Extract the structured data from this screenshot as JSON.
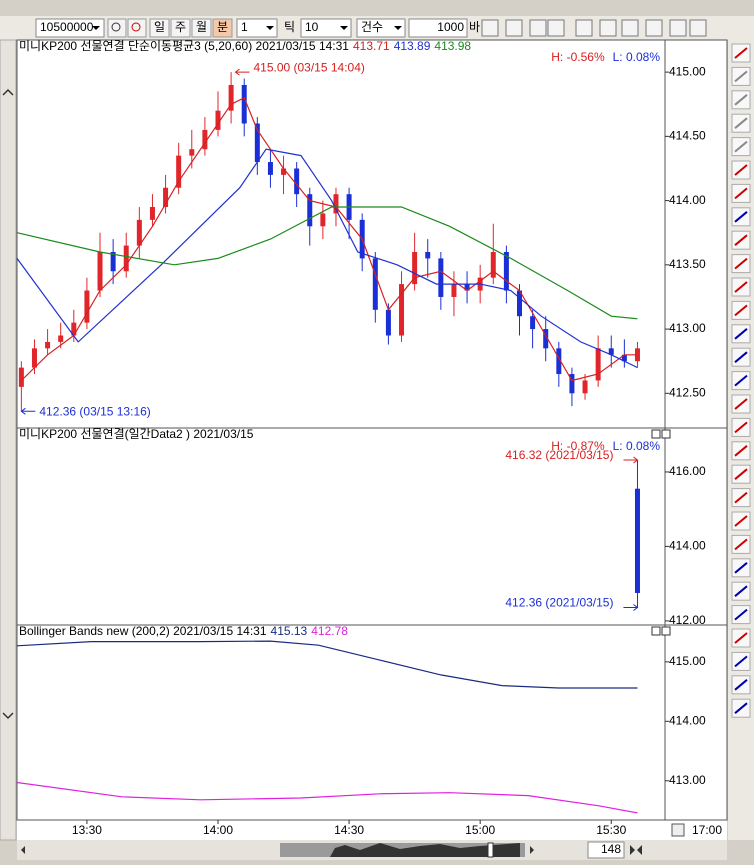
{
  "toolbar": {
    "code": "10500000",
    "periods": [
      "일",
      "주",
      "월",
      "분"
    ],
    "interval": "1",
    "tick": "틱",
    "tick_count": "10",
    "count_mode": "건수",
    "count": "1000",
    "bar": "바"
  },
  "chart_data": [
    {
      "type": "candlestick",
      "title": "미니KP200 선물연결 단순이동평균3 (5,20,60) 2021/03/15 14:31",
      "legend_values": [
        {
          "value": 413.71,
          "label": "413.71",
          "color": "#d62020"
        },
        {
          "value": 413.89,
          "label": "413.89",
          "color": "#2030d0"
        },
        {
          "value": 413.98,
          "label": "413.98",
          "color": "#1a8a1a"
        }
      ],
      "high_change": "H: -0.56%",
      "low_change": "L: 0.08%",
      "xlim": [
        794,
        942.3
      ],
      "ylim": [
        412.23,
        415.25
      ],
      "yticks": [
        {
          "value": 415,
          "label": "415.00"
        },
        {
          "value": 414.5,
          "label": "414.50"
        },
        {
          "value": 414,
          "label": "414.00"
        },
        {
          "value": 413.5,
          "label": "413.50"
        },
        {
          "value": 413,
          "label": "413.00"
        },
        {
          "value": 412.5,
          "label": "412.50"
        }
      ],
      "up_color": "#e0262b",
      "down_color": "#1b2fd6",
      "candles": {
        "x": [
          795,
          798,
          801,
          804,
          807,
          810,
          813,
          816,
          819,
          822,
          825,
          828,
          831,
          834,
          837,
          840,
          843,
          846,
          849,
          852,
          855,
          858,
          861,
          864,
          867,
          870,
          873,
          876,
          879,
          882,
          885,
          888,
          891,
          894,
          897,
          900,
          903,
          906,
          909,
          912,
          915,
          918,
          921,
          924,
          927,
          930,
          933,
          936
        ],
        "open": [
          412.55,
          412.7,
          412.85,
          412.9,
          412.95,
          413.05,
          413.3,
          413.6,
          413.45,
          413.65,
          413.85,
          413.95,
          414.1,
          414.35,
          414.4,
          414.55,
          414.7,
          414.9,
          414.6,
          414.3,
          414.2,
          414.25,
          414.05,
          413.8,
          413.9,
          414.05,
          413.85,
          413.55,
          413.15,
          412.95,
          413.35,
          413.6,
          413.55,
          413.25,
          413.35,
          413.3,
          413.4,
          413.6,
          413.3,
          413.1,
          413.0,
          412.85,
          412.65,
          412.5,
          412.6,
          412.85,
          412.8,
          412.75
        ],
        "high": [
          412.75,
          412.92,
          413.0,
          413.05,
          413.15,
          413.4,
          413.75,
          413.7,
          413.75,
          413.95,
          414.05,
          414.2,
          414.45,
          414.55,
          414.65,
          414.85,
          415.0,
          414.95,
          414.65,
          414.4,
          414.35,
          414.3,
          414.1,
          414.0,
          414.1,
          414.1,
          413.9,
          413.6,
          413.2,
          413.45,
          413.75,
          413.7,
          413.6,
          413.45,
          413.45,
          413.5,
          413.82,
          413.65,
          413.35,
          413.15,
          413.1,
          412.9,
          412.7,
          412.65,
          412.95,
          412.95,
          412.92,
          412.9
        ],
        "low": [
          412.36,
          412.65,
          412.8,
          412.85,
          412.9,
          413.0,
          413.25,
          413.35,
          413.4,
          413.55,
          413.8,
          413.9,
          414.05,
          414.25,
          414.35,
          414.5,
          414.6,
          414.5,
          414.2,
          414.1,
          414.05,
          413.95,
          413.65,
          413.7,
          413.8,
          413.7,
          413.45,
          413.05,
          412.88,
          412.9,
          413.3,
          413.4,
          413.15,
          413.1,
          413.2,
          413.2,
          413.35,
          413.2,
          412.95,
          412.85,
          412.75,
          412.55,
          412.4,
          412.45,
          412.55,
          412.7,
          412.7,
          412.7
        ],
        "close": [
          412.7,
          412.85,
          412.9,
          412.95,
          413.05,
          413.3,
          413.6,
          413.45,
          413.65,
          413.85,
          413.95,
          414.1,
          414.35,
          414.4,
          414.55,
          414.7,
          414.9,
          414.6,
          414.3,
          414.2,
          414.25,
          414.05,
          413.8,
          413.9,
          414.05,
          413.85,
          413.55,
          413.15,
          412.95,
          413.35,
          413.6,
          413.55,
          413.25,
          413.35,
          413.3,
          413.4,
          413.6,
          413.3,
          413.1,
          413.0,
          412.85,
          412.65,
          412.5,
          412.6,
          412.85,
          412.8,
          412.75,
          412.85
        ]
      },
      "series": [
        {
          "color": "#d62020",
          "x": [
            795,
            801,
            807,
            813,
            819,
            825,
            831,
            837,
            843,
            846,
            849,
            855,
            861,
            867,
            873,
            879,
            885,
            891,
            897,
            903,
            909,
            915,
            921,
            927,
            933,
            936
          ],
          "values": [
            412.6,
            412.8,
            412.95,
            413.3,
            413.5,
            413.8,
            414.15,
            414.45,
            414.75,
            414.8,
            414.55,
            414.25,
            414.0,
            413.95,
            413.7,
            413.15,
            413.4,
            413.45,
            413.3,
            413.45,
            413.3,
            412.95,
            412.6,
            412.65,
            412.8,
            412.8
          ]
        },
        {
          "color": "#2030d0",
          "x": [
            794,
            808,
            827,
            845,
            851,
            859,
            866,
            872,
            881,
            890,
            900,
            907,
            914,
            923,
            930,
            936
          ],
          "values": [
            413.55,
            412.9,
            413.5,
            414.1,
            414.4,
            414.35,
            414.0,
            413.6,
            413.5,
            413.35,
            413.35,
            413.3,
            413.1,
            412.9,
            412.8,
            412.7
          ]
        },
        {
          "color": "#1a8a1a",
          "x": [
            794,
            813,
            830,
            840,
            852,
            866,
            882,
            893,
            907,
            920,
            930,
            936
          ],
          "values": [
            413.75,
            413.6,
            413.5,
            413.55,
            413.7,
            413.95,
            413.95,
            413.8,
            413.55,
            413.3,
            413.1,
            413.08
          ]
        }
      ],
      "annotations": [
        {
          "text": "415.00 (03/15 14:04)",
          "x": 844,
          "y": 415.0,
          "color": "#d62020"
        },
        {
          "text": "412.36 (03/15 13:16)",
          "x": 795,
          "y": 412.36,
          "color": "#1b2fd6"
        }
      ]
    },
    {
      "type": "candlestick",
      "title": "미니KP200 선물연결(일간Data2 ) 2021/03/15",
      "high_change": "H: -0.87%",
      "low_change": "L: 0.08%",
      "xlim": [
        794,
        942.3
      ],
      "ylim": [
        411.89,
        417.18
      ],
      "yticks": [
        {
          "value": 416,
          "label": "416.00"
        },
        {
          "value": 414,
          "label": "414.00"
        },
        {
          "value": 412,
          "label": "412.00"
        }
      ],
      "up_color": "#e0262b",
      "down_color": "#1b2fd6",
      "candles": {
        "x": [
          936
        ],
        "open": [
          415.55
        ],
        "high": [
          416.32
        ],
        "low": [
          412.36
        ],
        "close": [
          412.75
        ]
      },
      "annotations": [
        {
          "text": "416.32 (2021/03/15)",
          "x": 936,
          "y": 416.32,
          "color": "#d62020"
        },
        {
          "text": "412.36 (2021/03/15)",
          "x": 936,
          "y": 412.36,
          "color": "#1b2fd6"
        }
      ]
    },
    {
      "type": "line",
      "title": "Bollinger Bands new  (200,2) 2021/03/15 14:31",
      "legend_values": [
        {
          "value": 415.13,
          "label": "415.13",
          "color": "#1a2a80"
        },
        {
          "value": 412.78,
          "label": "412.78",
          "color": "#e020e0"
        }
      ],
      "xlim": [
        794,
        942.3
      ],
      "ylim": [
        412.34,
        415.62
      ],
      "yticks": [
        {
          "value": 415,
          "label": "415.00"
        },
        {
          "value": 414,
          "label": "414.00"
        },
        {
          "value": 413,
          "label": "413.00"
        }
      ],
      "xticks": [
        {
          "value": 810,
          "label": "13:30"
        },
        {
          "value": 840,
          "label": "14:00"
        },
        {
          "value": 870,
          "label": "14:30"
        },
        {
          "value": 900,
          "label": "15:00"
        },
        {
          "value": 930,
          "label": "15:30"
        }
      ],
      "series": [
        {
          "color": "#1a2a80",
          "x": [
            794,
            811,
            836,
            852,
            863,
            877,
            891,
            905,
            918,
            936
          ],
          "values": [
            415.27,
            415.34,
            415.34,
            415.35,
            415.28,
            415.03,
            414.78,
            414.6,
            414.56,
            414.56
          ]
        },
        {
          "color": "#e020e0",
          "x": [
            794,
            818,
            836,
            859,
            877,
            893,
            911,
            927,
            936
          ],
          "values": [
            412.97,
            412.73,
            412.68,
            412.71,
            412.78,
            412.8,
            412.75,
            412.58,
            412.46
          ]
        }
      ]
    }
  ],
  "axis_end_label": "17:00",
  "scroll_count": "148"
}
